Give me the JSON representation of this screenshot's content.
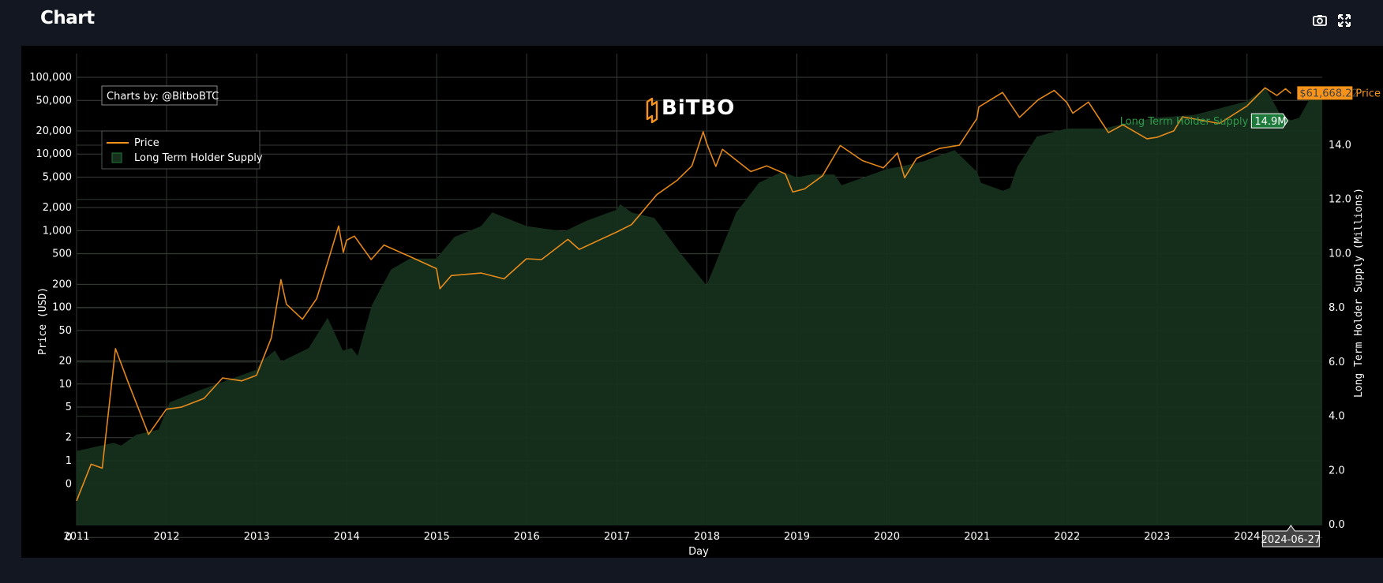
{
  "header": {
    "title": "Chart"
  },
  "toolbar": {
    "icons": [
      "camera-icon",
      "fullscreen-icon"
    ]
  },
  "watermark": {
    "logo_text": "BiTBO"
  },
  "credit": {
    "text": "Charts by: @BitboBTC"
  },
  "colors": {
    "price": "#f7931a",
    "supply_fill": "#16301d",
    "supply_line": "#1f7a38",
    "background": "#000000",
    "page": "#131722"
  },
  "chart_data": {
    "type": "line",
    "xlabel": "Day",
    "ylabel_left": "Price (USD)",
    "ylabel_right": "Long Term Holder Supply (Millions)",
    "y_left_scale": "log",
    "y_left_ticks": [
      "100,000",
      "50,000",
      "20,000",
      "10,000",
      "5,000",
      "2,000",
      "1,000",
      "500",
      "200",
      "100",
      "50",
      "20",
      "10",
      "5",
      "2",
      "1",
      "0",
      "0"
    ],
    "y_right_ticks": [
      "14.0",
      "12.0",
      "10.0",
      "8.0",
      "6.0",
      "4.0",
      "2.0",
      "0.0"
    ],
    "y_right_range": [
      0,
      16.5
    ],
    "x_ticks": [
      "2011",
      "2012",
      "2013",
      "2014",
      "2015",
      "2016",
      "2017",
      "2018",
      "2019",
      "2020",
      "2021",
      "2022",
      "2023",
      "2024"
    ],
    "x_range": [
      "2011-01-01",
      "2024-11-01"
    ],
    "grid": true,
    "legend_position": "top-left",
    "series": [
      {
        "name": "Price",
        "axis": "left",
        "points": [
          [
            "2011-01-01",
            0.3
          ],
          [
            "2011-03-01",
            0.9
          ],
          [
            "2011-04-15",
            0.8
          ],
          [
            "2011-06-08",
            29
          ],
          [
            "2011-08-01",
            10
          ],
          [
            "2011-10-20",
            2.2
          ],
          [
            "2011-12-31",
            4.7
          ],
          [
            "2012-03-01",
            5
          ],
          [
            "2012-06-01",
            6.5
          ],
          [
            "2012-08-15",
            12
          ],
          [
            "2012-11-01",
            11
          ],
          [
            "2012-12-31",
            13
          ],
          [
            "2013-03-01",
            40
          ],
          [
            "2013-04-09",
            230
          ],
          [
            "2013-05-01",
            110
          ],
          [
            "2013-07-05",
            70
          ],
          [
            "2013-09-01",
            130
          ],
          [
            "2013-11-29",
            1150
          ],
          [
            "2013-12-18",
            520
          ],
          [
            "2013-12-31",
            750
          ],
          [
            "2014-02-01",
            850
          ],
          [
            "2014-04-10",
            420
          ],
          [
            "2014-06-01",
            650
          ],
          [
            "2014-09-01",
            480
          ],
          [
            "2014-12-31",
            320
          ],
          [
            "2015-01-14",
            175
          ],
          [
            "2015-03-01",
            260
          ],
          [
            "2015-07-01",
            280
          ],
          [
            "2015-10-01",
            235
          ],
          [
            "2015-12-31",
            430
          ],
          [
            "2016-03-01",
            420
          ],
          [
            "2016-06-16",
            770
          ],
          [
            "2016-08-01",
            570
          ],
          [
            "2016-12-31",
            960
          ],
          [
            "2017-03-01",
            1200
          ],
          [
            "2017-06-12",
            2950
          ],
          [
            "2017-09-01",
            4500
          ],
          [
            "2017-11-01",
            7000
          ],
          [
            "2017-12-17",
            19500
          ],
          [
            "2017-12-31",
            13800
          ],
          [
            "2018-02-06",
            6900
          ],
          [
            "2018-03-05",
            11500
          ],
          [
            "2018-06-28",
            5900
          ],
          [
            "2018-09-01",
            7000
          ],
          [
            "2018-11-15",
            5500
          ],
          [
            "2018-12-15",
            3200
          ],
          [
            "2019-02-01",
            3500
          ],
          [
            "2019-04-15",
            5200
          ],
          [
            "2019-06-26",
            12900
          ],
          [
            "2019-09-24",
            8200
          ],
          [
            "2019-12-18",
            6600
          ],
          [
            "2020-02-13",
            10300
          ],
          [
            "2020-03-13",
            4900
          ],
          [
            "2020-05-01",
            8800
          ],
          [
            "2020-08-01",
            11800
          ],
          [
            "2020-10-21",
            13000
          ],
          [
            "2020-12-31",
            29000
          ],
          [
            "2021-01-08",
            41000
          ],
          [
            "2021-04-14",
            63500
          ],
          [
            "2021-06-22",
            30000
          ],
          [
            "2021-09-06",
            51000
          ],
          [
            "2021-11-10",
            67500
          ],
          [
            "2021-12-31",
            47000
          ],
          [
            "2022-01-24",
            34000
          ],
          [
            "2022-03-29",
            47500
          ],
          [
            "2022-06-18",
            19000
          ],
          [
            "2022-08-15",
            24000
          ],
          [
            "2022-11-21",
            15800
          ],
          [
            "2022-12-31",
            16500
          ],
          [
            "2023-03-10",
            20000
          ],
          [
            "2023-04-14",
            30500
          ],
          [
            "2023-09-11",
            25000
          ],
          [
            "2023-12-31",
            42000
          ],
          [
            "2024-03-14",
            73000
          ],
          [
            "2024-05-01",
            58000
          ],
          [
            "2024-06-05",
            71000
          ],
          [
            "2024-06-27",
            61668.22
          ]
        ]
      },
      {
        "name": "Long Term Holder Supply",
        "axis": "right",
        "points": [
          [
            "2011-01-01",
            2.7
          ],
          [
            "2011-06-01",
            3.0
          ],
          [
            "2011-07-01",
            2.9
          ],
          [
            "2011-09-01",
            3.3
          ],
          [
            "2011-12-01",
            3.5
          ],
          [
            "2012-01-15",
            4.5
          ],
          [
            "2012-06-01",
            5.0
          ],
          [
            "2012-12-31",
            5.7
          ],
          [
            "2013-01-20",
            6.0
          ],
          [
            "2013-03-15",
            6.4
          ],
          [
            "2013-04-10",
            6.0
          ],
          [
            "2013-08-01",
            6.5
          ],
          [
            "2013-10-15",
            7.6
          ],
          [
            "2013-12-15",
            6.4
          ],
          [
            "2014-01-20",
            6.5
          ],
          [
            "2014-02-15",
            6.2
          ],
          [
            "2014-04-15",
            8.1
          ],
          [
            "2014-07-01",
            9.4
          ],
          [
            "2014-09-15",
            9.8
          ],
          [
            "2014-12-31",
            9.8
          ],
          [
            "2015-03-15",
            10.6
          ],
          [
            "2015-07-01",
            11.0
          ],
          [
            "2015-08-15",
            11.5
          ],
          [
            "2015-12-31",
            11.0
          ],
          [
            "2016-06-01",
            10.8
          ],
          [
            "2016-09-01",
            11.2
          ],
          [
            "2016-12-31",
            11.6
          ],
          [
            "2017-01-15",
            11.8
          ],
          [
            "2017-03-01",
            11.5
          ],
          [
            "2017-06-01",
            11.3
          ],
          [
            "2017-09-15",
            10.0
          ],
          [
            "2017-12-31",
            8.8
          ],
          [
            "2018-02-01",
            9.5
          ],
          [
            "2018-05-01",
            11.5
          ],
          [
            "2018-08-01",
            12.6
          ],
          [
            "2018-11-01",
            13.0
          ],
          [
            "2018-12-31",
            12.8
          ],
          [
            "2019-03-01",
            12.9
          ],
          [
            "2019-06-01",
            12.9
          ],
          [
            "2019-07-01",
            12.5
          ],
          [
            "2019-10-01",
            12.8
          ],
          [
            "2019-12-31",
            13.1
          ],
          [
            "2020-03-01",
            13.2
          ],
          [
            "2020-06-01",
            13.4
          ],
          [
            "2020-10-01",
            13.8
          ],
          [
            "2020-12-31",
            13.0
          ],
          [
            "2021-01-15",
            12.6
          ],
          [
            "2021-04-15",
            12.3
          ],
          [
            "2021-05-15",
            12.4
          ],
          [
            "2021-06-15",
            13.2
          ],
          [
            "2021-09-01",
            14.3
          ],
          [
            "2021-12-31",
            14.6
          ],
          [
            "2022-06-01",
            14.6
          ],
          [
            "2022-09-01",
            14.8
          ],
          [
            "2022-12-31",
            15.0
          ],
          [
            "2023-06-01",
            15.1
          ],
          [
            "2023-12-31",
            15.6
          ],
          [
            "2024-03-15",
            16.1
          ],
          [
            "2024-05-15",
            15.1
          ],
          [
            "2024-06-27",
            14.9
          ],
          [
            "2024-08-01",
            15.0
          ],
          [
            "2024-10-01",
            16.0
          ],
          [
            "2024-11-01",
            16.1
          ]
        ]
      }
    ],
    "hover": {
      "x_label": "2024-06-27",
      "price_label": "$61,668.22",
      "price_series": "Price",
      "supply_label": "14.9M",
      "supply_series": "Long Term Holder Supply"
    }
  }
}
